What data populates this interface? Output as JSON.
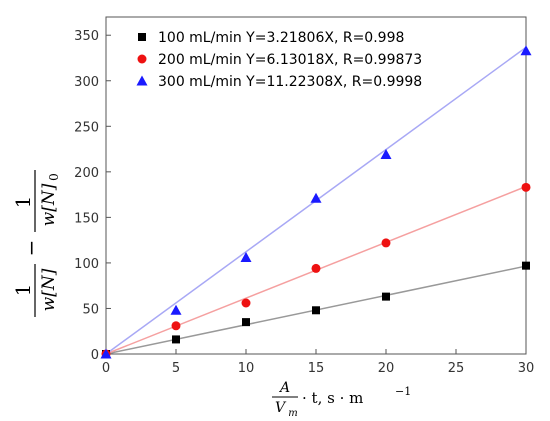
{
  "chart_data": {
    "type": "scatter",
    "xlabel": {
      "numerator": "A",
      "denominator": "V",
      "denominator_sub": "m",
      "rest": "· t, s · m",
      "exponent": "−1"
    },
    "ylabel": {
      "one_a": "1",
      "den_a": "w[N]",
      "minus": "−",
      "one_b": "1",
      "den_b": "w[N]",
      "den_b_sub": "0"
    },
    "xlim": [
      0,
      30
    ],
    "ylim": [
      0,
      370
    ],
    "xticks": [
      0,
      5,
      10,
      15,
      20,
      25,
      30
    ],
    "yticks": [
      0,
      50,
      100,
      150,
      200,
      250,
      300,
      350
    ],
    "grid": false,
    "legend_position": "top-left",
    "series": [
      {
        "name": "100 mL/min Y=3.21806X, R=0.998",
        "marker": "square",
        "marker_color": "#000000",
        "line_color": "#999999",
        "slope": 3.21806,
        "x": [
          0,
          5,
          10,
          15,
          20,
          30
        ],
        "y": [
          0,
          16,
          35,
          48,
          63,
          97
        ]
      },
      {
        "name": "200 mL/min Y=6.13018X, R=0.99873",
        "marker": "circle",
        "marker_color": "#ee1111",
        "line_color": "#f5a0a0",
        "slope": 6.13018,
        "x": [
          0,
          5,
          10,
          15,
          20,
          30
        ],
        "y": [
          0,
          31,
          56,
          94,
          122,
          183
        ]
      },
      {
        "name": "300 mL/min Y=11.22308X, R=0.9998",
        "marker": "triangle",
        "marker_color": "#1a1aff",
        "line_color": "#a8a8f5",
        "slope": 11.22308,
        "x": [
          0,
          5,
          10,
          15,
          20,
          30
        ],
        "y": [
          0,
          48,
          106,
          171,
          219,
          333
        ]
      }
    ]
  }
}
